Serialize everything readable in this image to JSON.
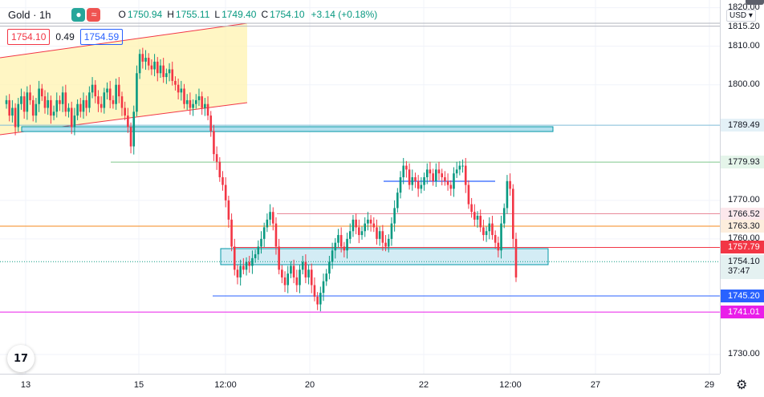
{
  "header": {
    "title": "Gold · 1h",
    "icon_primary": "eye-icon",
    "icon_secondary": "wave-icon",
    "ohlc": [
      {
        "k": "O",
        "v": "1750.94"
      },
      {
        "k": "H",
        "v": "1755.11"
      },
      {
        "k": "L",
        "v": "1749.40"
      },
      {
        "k": "C",
        "v": "1754.10"
      },
      {
        "k": "",
        "v": "+3.14 (+0.18%)"
      }
    ]
  },
  "quote": {
    "bid": "1754.10",
    "spread": "0.49",
    "ask": "1754.59"
  },
  "currency": "USD ▾",
  "chart_data": {
    "type": "candlestick",
    "x_ticks": [
      "13",
      "15",
      "12:00",
      "20",
      "22",
      "12:00",
      "27",
      "29"
    ],
    "y_ticks": [
      1820,
      1810,
      1800,
      1770,
      1760,
      1730
    ],
    "ylim": [
      1725,
      1822
    ],
    "price_labels": [
      {
        "text": "1815.20",
        "value": 1815.2,
        "bg": "#ffffff",
        "fg": "#131722",
        "line": "#b2b5be"
      },
      {
        "text": "1789.49",
        "value": 1789.49,
        "bg": "#e4f1f7",
        "fg": "#131722",
        "line": "#7fbcd6"
      },
      {
        "text": "1779.93",
        "value": 1779.93,
        "bg": "#e5f5ea",
        "fg": "#131722",
        "line": "#7fc88c"
      },
      {
        "text": "1766.52",
        "value": 1766.52,
        "bg": "#fce8ec",
        "fg": "#131722",
        "line": "#e88a9a"
      },
      {
        "text": "1763.30",
        "value": 1763.3,
        "bg": "#fdeedd",
        "fg": "#131722",
        "line": "#f5891e"
      },
      {
        "text": "1757.79",
        "value": 1757.79,
        "bg": "#f23645",
        "fg": "#ffffff",
        "line": "#f23645"
      },
      {
        "text": "1754.10",
        "value": 1754.1,
        "bg": "#e4f1f1",
        "fg": "#131722",
        "line": "#089981"
      },
      {
        "text": "1745.20",
        "value": 1745.2,
        "bg": "#2962ff",
        "fg": "#ffffff",
        "line": "#2962ff"
      },
      {
        "text": "1741.01",
        "value": 1741.01,
        "bg": "#e91ee9",
        "fg": "#ffffff",
        "line": "#e91ee9"
      }
    ],
    "countdown": "37:47",
    "series": [
      {
        "name": "price",
        "values": [
          1796,
          1792,
          1794,
          1789,
          1795,
          1797,
          1793,
          1798,
          1796,
          1792,
          1795,
          1799,
          1797,
          1794,
          1796,
          1792,
          1793,
          1796,
          1795,
          1798,
          1793,
          1794,
          1789,
          1792,
          1795,
          1793,
          1796,
          1794,
          1798,
          1800,
          1797,
          1795,
          1794,
          1798,
          1799,
          1796,
          1795,
          1800,
          1797,
          1794,
          1792,
          1789,
          1784,
          1793,
          1803,
          1808,
          1806,
          1807,
          1805,
          1804,
          1806,
          1803,
          1805,
          1802,
          1803,
          1804,
          1801,
          1800,
          1798,
          1799,
          1795,
          1796,
          1794,
          1795,
          1796,
          1797,
          1794,
          1795,
          1792,
          1788,
          1782,
          1780,
          1776,
          1774,
          1770,
          1765,
          1758,
          1752,
          1750,
          1753,
          1752,
          1754,
          1753,
          1755,
          1756,
          1758,
          1760,
          1763,
          1765,
          1767,
          1764,
          1758,
          1752,
          1750,
          1748,
          1751,
          1753,
          1750,
          1748,
          1752,
          1754,
          1750,
          1752,
          1748,
          1745,
          1743,
          1746,
          1749,
          1751,
          1754,
          1757,
          1759,
          1761,
          1758,
          1757,
          1760,
          1762,
          1765,
          1763,
          1761,
          1762,
          1764,
          1765,
          1764,
          1763,
          1760,
          1762,
          1759,
          1758,
          1760,
          1764,
          1768,
          1772,
          1776,
          1779,
          1778,
          1774,
          1776,
          1775,
          1773,
          1774,
          1776,
          1778,
          1777,
          1775,
          1778,
          1777,
          1776,
          1775,
          1774,
          1773,
          1777,
          1778,
          1779,
          1779,
          1774,
          1769,
          1767,
          1765,
          1766,
          1763,
          1761,
          1762,
          1764,
          1761,
          1759,
          1757,
          1764,
          1768,
          1775,
          1773,
          1760,
          1750
        ]
      }
    ]
  }
}
